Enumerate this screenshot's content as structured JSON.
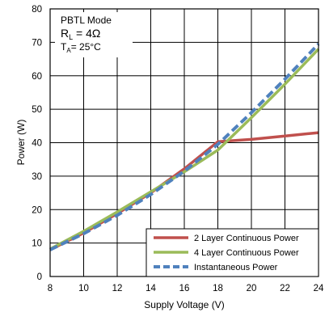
{
  "chart_data": {
    "type": "line",
    "xlabel": "Supply Voltage (V)",
    "ylabel": "Power (W)",
    "xlim": [
      8,
      24
    ],
    "ylim": [
      0,
      80
    ],
    "x_ticks": [
      8,
      10,
      12,
      14,
      16,
      18,
      20,
      22,
      24
    ],
    "y_ticks": [
      0,
      10,
      20,
      30,
      40,
      50,
      60,
      70,
      80
    ],
    "grid": true,
    "legend_position": "bottom-right",
    "annotation": {
      "line1": "PBTL  Mode",
      "line2_prefix": "R",
      "line2_sub": "L",
      "line2_suffix": " = 4Ω",
      "line3_prefix": "T",
      "line3_sub": "A",
      "line3_suffix": "= 25°C"
    },
    "series": [
      {
        "name": "2 Layer Continuous Power",
        "color": "#c0504d",
        "style": "solid",
        "x": [
          8,
          10,
          12,
          14,
          16,
          18,
          20,
          22,
          24
        ],
        "y": [
          8,
          13,
          18.8,
          25,
          32.2,
          40.3,
          41,
          42,
          43
        ]
      },
      {
        "name": "4 Layer Continuous Power",
        "color": "#9bbb59",
        "style": "solid",
        "x": [
          8,
          10,
          12,
          14,
          16,
          18,
          20,
          22,
          24
        ],
        "y": [
          8.2,
          13.5,
          19.3,
          25.3,
          31.3,
          37.8,
          47.5,
          57.5,
          68
        ]
      },
      {
        "name": "Instantaneous Power",
        "color": "#4f81bd",
        "style": "dashed",
        "x": [
          8,
          10,
          12,
          14,
          16,
          18,
          20,
          22,
          24
        ],
        "y": [
          8,
          12.8,
          18.3,
          24.5,
          31.5,
          39.5,
          49,
          59,
          69.5
        ]
      }
    ]
  }
}
